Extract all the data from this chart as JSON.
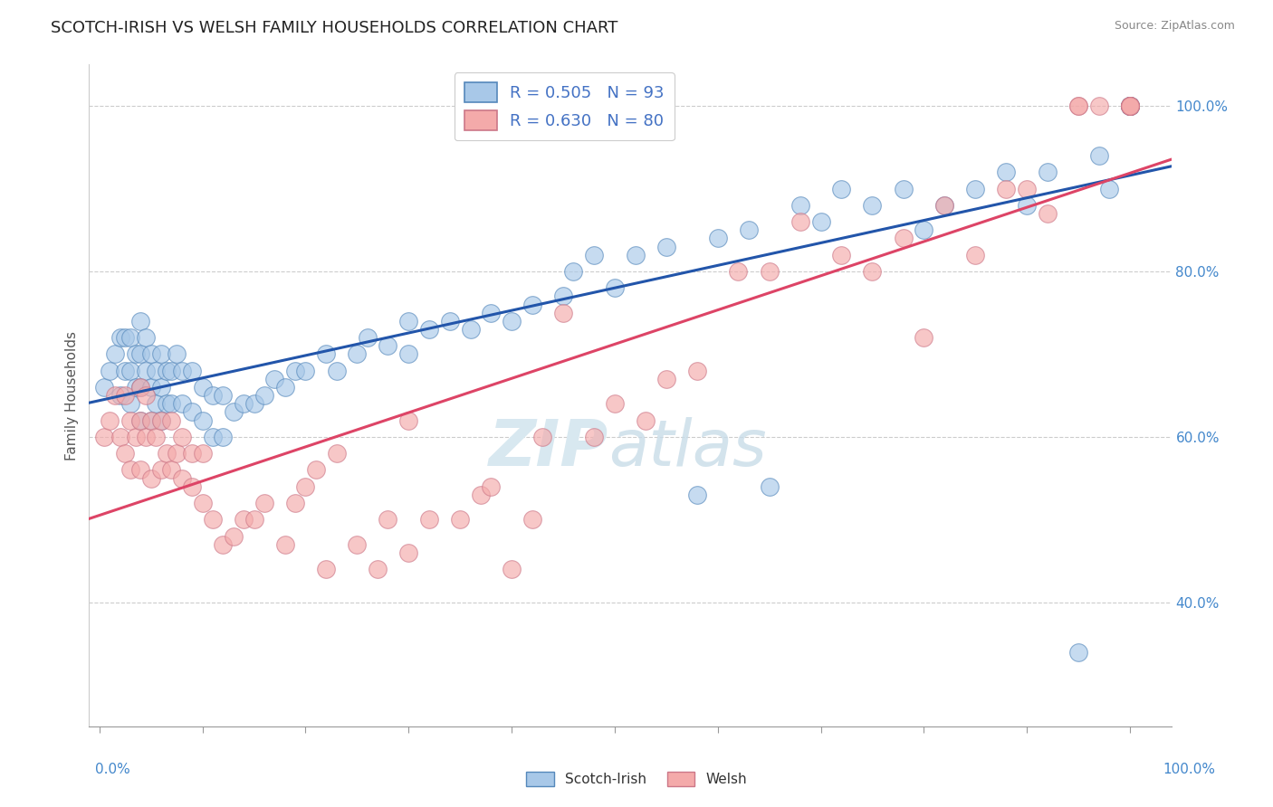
{
  "title": "SCOTCH-IRISH VS WELSH FAMILY HOUSEHOLDS CORRELATION CHART",
  "source_text": "Source: ZipAtlas.com",
  "ylabel": "Family Households",
  "blue_color": "#a8c8e8",
  "blue_edge_color": "#5588bb",
  "pink_color": "#f4aaaa",
  "pink_edge_color": "#cc7788",
  "blue_line_color": "#2255aa",
  "pink_line_color": "#dd4466",
  "blue_R": 0.505,
  "blue_N": 93,
  "pink_R": 0.63,
  "pink_N": 80,
  "series_blue_label": "Scotch-Irish",
  "series_pink_label": "Welsh",
  "ylim": [
    0.25,
    1.05
  ],
  "xlim": [
    -0.01,
    1.04
  ],
  "ytick_positions": [
    0.4,
    0.6,
    0.8,
    1.0
  ],
  "ytick_labels": [
    "40.0%",
    "60.0%",
    "80.0%",
    "100.0%"
  ],
  "grid_color": "#cccccc",
  "watermark_color": "#d8e8f0",
  "title_fontsize": 13,
  "blue_x": [
    0.005,
    0.01,
    0.015,
    0.02,
    0.02,
    0.025,
    0.025,
    0.03,
    0.03,
    0.03,
    0.035,
    0.035,
    0.04,
    0.04,
    0.04,
    0.04,
    0.045,
    0.045,
    0.05,
    0.05,
    0.05,
    0.055,
    0.055,
    0.06,
    0.06,
    0.06,
    0.065,
    0.065,
    0.07,
    0.07,
    0.075,
    0.08,
    0.08,
    0.09,
    0.09,
    0.1,
    0.1,
    0.11,
    0.11,
    0.12,
    0.12,
    0.13,
    0.14,
    0.15,
    0.16,
    0.17,
    0.18,
    0.19,
    0.2,
    0.22,
    0.23,
    0.25,
    0.26,
    0.28,
    0.3,
    0.3,
    0.32,
    0.34,
    0.36,
    0.38,
    0.4,
    0.42,
    0.45,
    0.46,
    0.48,
    0.5,
    0.52,
    0.55,
    0.58,
    0.6,
    0.63,
    0.65,
    0.68,
    0.7,
    0.72,
    0.75,
    0.78,
    0.8,
    0.82,
    0.85,
    0.88,
    0.9,
    0.92,
    0.95,
    0.97,
    0.98,
    1.0,
    1.0,
    1.0,
    1.0,
    1.0,
    1.0,
    1.0
  ],
  "blue_y": [
    0.66,
    0.68,
    0.7,
    0.65,
    0.72,
    0.68,
    0.72,
    0.64,
    0.68,
    0.72,
    0.66,
    0.7,
    0.62,
    0.66,
    0.7,
    0.74,
    0.68,
    0.72,
    0.62,
    0.66,
    0.7,
    0.64,
    0.68,
    0.62,
    0.66,
    0.7,
    0.64,
    0.68,
    0.64,
    0.68,
    0.7,
    0.64,
    0.68,
    0.63,
    0.68,
    0.62,
    0.66,
    0.6,
    0.65,
    0.6,
    0.65,
    0.63,
    0.64,
    0.64,
    0.65,
    0.67,
    0.66,
    0.68,
    0.68,
    0.7,
    0.68,
    0.7,
    0.72,
    0.71,
    0.7,
    0.74,
    0.73,
    0.74,
    0.73,
    0.75,
    0.74,
    0.76,
    0.77,
    0.8,
    0.82,
    0.78,
    0.82,
    0.83,
    0.53,
    0.84,
    0.85,
    0.54,
    0.88,
    0.86,
    0.9,
    0.88,
    0.9,
    0.85,
    0.88,
    0.9,
    0.92,
    0.88,
    0.92,
    0.34,
    0.94,
    0.9,
    1.0,
    1.0,
    1.0,
    1.0,
    1.0,
    1.0,
    1.0
  ],
  "pink_x": [
    0.005,
    0.01,
    0.015,
    0.02,
    0.025,
    0.025,
    0.03,
    0.03,
    0.035,
    0.04,
    0.04,
    0.04,
    0.045,
    0.045,
    0.05,
    0.05,
    0.055,
    0.06,
    0.06,
    0.065,
    0.07,
    0.07,
    0.075,
    0.08,
    0.08,
    0.09,
    0.09,
    0.1,
    0.1,
    0.11,
    0.12,
    0.13,
    0.14,
    0.15,
    0.16,
    0.18,
    0.19,
    0.2,
    0.21,
    0.22,
    0.23,
    0.25,
    0.27,
    0.28,
    0.3,
    0.3,
    0.32,
    0.35,
    0.37,
    0.38,
    0.4,
    0.42,
    0.43,
    0.45,
    0.48,
    0.5,
    0.53,
    0.55,
    0.58,
    0.62,
    0.65,
    0.68,
    0.72,
    0.75,
    0.78,
    0.8,
    0.82,
    0.85,
    0.88,
    0.9,
    0.92,
    0.95,
    0.95,
    0.97,
    1.0,
    1.0,
    1.0,
    1.0,
    1.0,
    1.0
  ],
  "pink_y": [
    0.6,
    0.62,
    0.65,
    0.6,
    0.58,
    0.65,
    0.56,
    0.62,
    0.6,
    0.56,
    0.62,
    0.66,
    0.6,
    0.65,
    0.55,
    0.62,
    0.6,
    0.56,
    0.62,
    0.58,
    0.56,
    0.62,
    0.58,
    0.55,
    0.6,
    0.54,
    0.58,
    0.52,
    0.58,
    0.5,
    0.47,
    0.48,
    0.5,
    0.5,
    0.52,
    0.47,
    0.52,
    0.54,
    0.56,
    0.44,
    0.58,
    0.47,
    0.44,
    0.5,
    0.46,
    0.62,
    0.5,
    0.5,
    0.53,
    0.54,
    0.44,
    0.5,
    0.6,
    0.75,
    0.6,
    0.64,
    0.62,
    0.67,
    0.68,
    0.8,
    0.8,
    0.86,
    0.82,
    0.8,
    0.84,
    0.72,
    0.88,
    0.82,
    0.9,
    0.9,
    0.87,
    1.0,
    1.0,
    1.0,
    1.0,
    1.0,
    1.0,
    1.0,
    1.0,
    1.0
  ]
}
